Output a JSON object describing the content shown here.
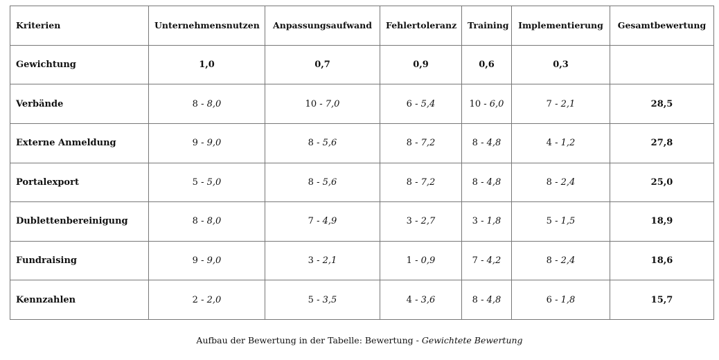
{
  "table": {
    "headers": [
      "Kriterien",
      "Unternehmensnutzen",
      "Anpassungsaufwand",
      "Fehlertoleranz",
      "Training",
      "Implementierung",
      "Gesamtbewertung"
    ],
    "weights_label": "Gewichtung",
    "weights": [
      "1,0",
      "0,7",
      "0,9",
      "0,6",
      "0,3",
      ""
    ],
    "rows": [
      {
        "label": "Verbände",
        "cells": [
          {
            "score": "8",
            "weighted": "8,0"
          },
          {
            "score": "10",
            "weighted": "7,0"
          },
          {
            "score": "6",
            "weighted": "5,4"
          },
          {
            "score": "10",
            "weighted": "6,0"
          },
          {
            "score": "7",
            "weighted": "2,1"
          }
        ],
        "total": "28,5"
      },
      {
        "label": "Externe Anmeldung",
        "cells": [
          {
            "score": "9",
            "weighted": "9,0"
          },
          {
            "score": "8",
            "weighted": "5,6"
          },
          {
            "score": "8",
            "weighted": "7,2"
          },
          {
            "score": "8",
            "weighted": "4,8"
          },
          {
            "score": "4",
            "weighted": "1,2"
          }
        ],
        "total": "27,8"
      },
      {
        "label": "Portalexport",
        "cells": [
          {
            "score": "5",
            "weighted": "5,0"
          },
          {
            "score": "8",
            "weighted": "5,6"
          },
          {
            "score": "8",
            "weighted": "7,2"
          },
          {
            "score": "8",
            "weighted": "4,8"
          },
          {
            "score": "8",
            "weighted": "2,4"
          }
        ],
        "total": "25,0"
      },
      {
        "label": "Dublettenbereinigung",
        "cells": [
          {
            "score": "8",
            "weighted": "8,0"
          },
          {
            "score": "7",
            "weighted": "4,9"
          },
          {
            "score": "3",
            "weighted": "2,7"
          },
          {
            "score": "3",
            "weighted": "1,8"
          },
          {
            "score": "5",
            "weighted": "1,5"
          }
        ],
        "total": "18,9"
      },
      {
        "label": "Fundraising",
        "cells": [
          {
            "score": "9",
            "weighted": "9,0"
          },
          {
            "score": "3",
            "weighted": "2,1"
          },
          {
            "score": "1",
            "weighted": "0,9"
          },
          {
            "score": "7",
            "weighted": "4,2"
          },
          {
            "score": "8",
            "weighted": "2,4"
          }
        ],
        "total": "18,6"
      },
      {
        "label": "Kennzahlen",
        "cells": [
          {
            "score": "2",
            "weighted": "2,0"
          },
          {
            "score": "5",
            "weighted": "3,5"
          },
          {
            "score": "4",
            "weighted": "3,6"
          },
          {
            "score": "8",
            "weighted": "4,8"
          },
          {
            "score": "6",
            "weighted": "1,8"
          }
        ],
        "total": "15,7"
      }
    ],
    "separator": " - "
  },
  "caption": {
    "prefix": "Aufbau der Bewertung in der Tabelle: Bewertung - ",
    "italic": "Gewichtete Bewertung"
  }
}
